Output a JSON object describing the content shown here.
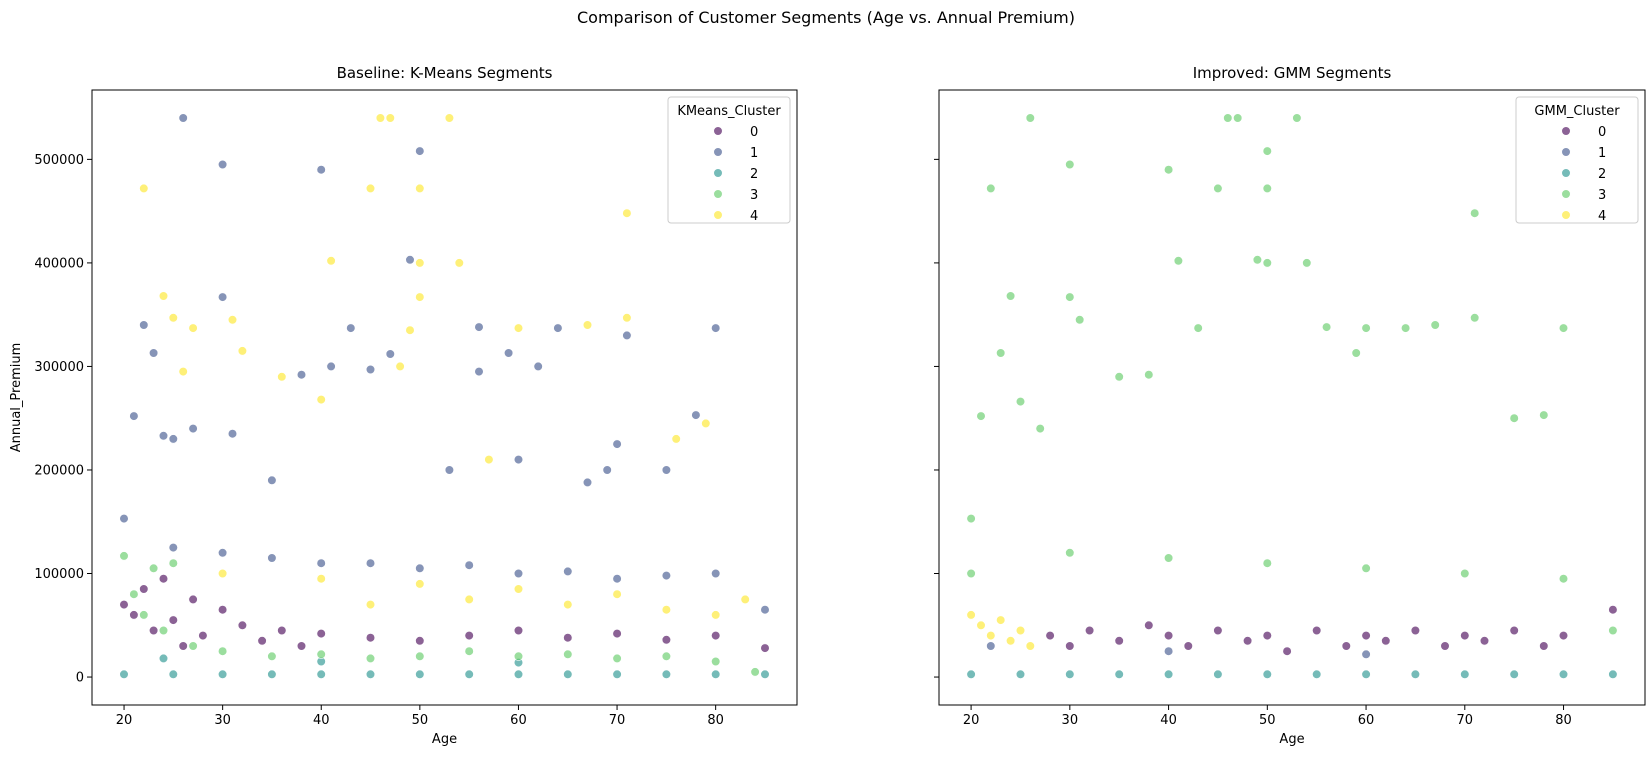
{
  "figure": {
    "suptitle": "Comparison of Customer Segments (Age vs. Annual Premium)"
  },
  "colors": {
    "cluster_0": "#440154",
    "cluster_1": "#3b528b",
    "cluster_2": "#21918c",
    "cluster_3": "#5ec962",
    "cluster_4": "#fde725"
  },
  "chart_data": [
    {
      "type": "scatter",
      "title": "Baseline: K-Means Segments",
      "xlabel": "Age",
      "ylabel": "Annual_Premium",
      "xlim": [
        16.75,
        88.25
      ],
      "ylim": [
        -27000,
        567000
      ],
      "xticks": [
        20,
        30,
        40,
        50,
        60,
        70,
        80
      ],
      "yticks": [
        0,
        100000,
        200000,
        300000,
        400000,
        500000
      ],
      "xtick_labels": [
        "20",
        "30",
        "40",
        "50",
        "60",
        "70",
        "80"
      ],
      "ytick_labels": [
        "0",
        "100000",
        "200000",
        "300000",
        "400000",
        "500000"
      ],
      "legend": {
        "title": "KMeans_Cluster",
        "placement": "top-right",
        "entries": [
          "0",
          "1",
          "2",
          "3",
          "4"
        ]
      },
      "grid": false,
      "series": [
        {
          "name": "0",
          "points": [
            [
              20,
              70000
            ],
            [
              21,
              60000
            ],
            [
              22,
              85000
            ],
            [
              23,
              45000
            ],
            [
              24,
              95000
            ],
            [
              25,
              55000
            ],
            [
              26,
              30000
            ],
            [
              27,
              75000
            ],
            [
              28,
              40000
            ],
            [
              30,
              65000
            ],
            [
              32,
              50000
            ],
            [
              34,
              35000
            ],
            [
              36,
              45000
            ],
            [
              38,
              30000
            ],
            [
              40,
              42000
            ],
            [
              45,
              38000
            ],
            [
              50,
              35000
            ],
            [
              55,
              40000
            ],
            [
              60,
              45000
            ],
            [
              65,
              38000
            ],
            [
              70,
              42000
            ],
            [
              75,
              36000
            ],
            [
              80,
              40000
            ],
            [
              85,
              28000
            ]
          ]
        },
        {
          "name": "1",
          "points": [
            [
              20,
              153000
            ],
            [
              21,
              252000
            ],
            [
              22,
              340000
            ],
            [
              23,
              313000
            ],
            [
              24,
              233000
            ],
            [
              25,
              230000
            ],
            [
              26,
              540000
            ],
            [
              27,
              240000
            ],
            [
              30,
              495000
            ],
            [
              30,
              367000
            ],
            [
              31,
              235000
            ],
            [
              35,
              190000
            ],
            [
              38,
              292000
            ],
            [
              40,
              490000
            ],
            [
              41,
              300000
            ],
            [
              43,
              337000
            ],
            [
              45,
              297000
            ],
            [
              47,
              312000
            ],
            [
              49,
              403000
            ],
            [
              50,
              508000
            ],
            [
              53,
              200000
            ],
            [
              56,
              338000
            ],
            [
              56,
              295000
            ],
            [
              59,
              313000
            ],
            [
              60,
              210000
            ],
            [
              62,
              300000
            ],
            [
              64,
              337000
            ],
            [
              67,
              188000
            ],
            [
              69,
              200000
            ],
            [
              70,
              225000
            ],
            [
              71,
              330000
            ],
            [
              75,
              200000
            ],
            [
              78,
              253000
            ],
            [
              80,
              337000
            ],
            [
              30,
              120000
            ],
            [
              40,
              110000
            ],
            [
              50,
              105000
            ],
            [
              60,
              100000
            ],
            [
              70,
              95000
            ],
            [
              80,
              100000
            ],
            [
              85,
              65000
            ],
            [
              25,
              125000
            ],
            [
              35,
              115000
            ],
            [
              45,
              110000
            ],
            [
              55,
              108000
            ],
            [
              65,
              102000
            ],
            [
              75,
              98000
            ]
          ]
        },
        {
          "name": "2",
          "points": [
            [
              20,
              2630
            ],
            [
              25,
              2630
            ],
            [
              30,
              2630
            ],
            [
              35,
              2630
            ],
            [
              40,
              2630
            ],
            [
              45,
              2630
            ],
            [
              50,
              2630
            ],
            [
              55,
              2630
            ],
            [
              60,
              2630
            ],
            [
              65,
              2630
            ],
            [
              70,
              2630
            ],
            [
              75,
              2630
            ],
            [
              80,
              2630
            ],
            [
              85,
              2630
            ],
            [
              24,
              18000
            ],
            [
              40,
              15000
            ],
            [
              60,
              14000
            ]
          ]
        },
        {
          "name": "3",
          "points": [
            [
              20,
              117000
            ],
            [
              21,
              80000
            ],
            [
              22,
              60000
            ],
            [
              23,
              105000
            ],
            [
              24,
              45000
            ],
            [
              25,
              110000
            ],
            [
              27,
              30000
            ],
            [
              30,
              25000
            ],
            [
              35,
              20000
            ],
            [
              40,
              22000
            ],
            [
              45,
              18000
            ],
            [
              50,
              20000
            ],
            [
              55,
              25000
            ],
            [
              60,
              20000
            ],
            [
              65,
              22000
            ],
            [
              70,
              18000
            ],
            [
              75,
              20000
            ],
            [
              80,
              15000
            ],
            [
              84,
              5000
            ]
          ]
        },
        {
          "name": "4",
          "points": [
            [
              22,
              472000
            ],
            [
              24,
              368000
            ],
            [
              25,
              347000
            ],
            [
              26,
              295000
            ],
            [
              27,
              337000
            ],
            [
              31,
              345000
            ],
            [
              32,
              315000
            ],
            [
              36,
              290000
            ],
            [
              40,
              268000
            ],
            [
              41,
              402000
            ],
            [
              45,
              472000
            ],
            [
              46,
              540000
            ],
            [
              47,
              540000
            ],
            [
              48,
              300000
            ],
            [
              49,
              335000
            ],
            [
              50,
              472000
            ],
            [
              50,
              400000
            ],
            [
              50,
              367000
            ],
            [
              53,
              540000
            ],
            [
              54,
              400000
            ],
            [
              57,
              210000
            ],
            [
              60,
              337000
            ],
            [
              67,
              340000
            ],
            [
              71,
              448000
            ],
            [
              71,
              347000
            ],
            [
              76,
              230000
            ],
            [
              79,
              245000
            ],
            [
              30,
              100000
            ],
            [
              40,
              95000
            ],
            [
              50,
              90000
            ],
            [
              60,
              85000
            ],
            [
              70,
              80000
            ],
            [
              80,
              60000
            ],
            [
              83,
              75000
            ],
            [
              45,
              70000
            ],
            [
              55,
              75000
            ],
            [
              65,
              70000
            ],
            [
              75,
              65000
            ]
          ]
        }
      ]
    },
    {
      "type": "scatter",
      "title": "Improved: GMM Segments",
      "xlabel": "Age",
      "ylabel": "",
      "xlim": [
        16.75,
        88.25
      ],
      "ylim": [
        -27000,
        567000
      ],
      "xticks": [
        20,
        30,
        40,
        50,
        60,
        70,
        80
      ],
      "yticks": [
        0,
        100000,
        200000,
        300000,
        400000,
        500000
      ],
      "xtick_labels": [
        "20",
        "30",
        "40",
        "50",
        "60",
        "70",
        "80"
      ],
      "ytick_labels": [],
      "legend": {
        "title": "GMM_Cluster",
        "placement": "top-right",
        "entries": [
          "0",
          "1",
          "2",
          "3",
          "4"
        ]
      },
      "grid": false,
      "series": [
        {
          "name": "0",
          "points": [
            [
              28,
              40000
            ],
            [
              30,
              30000
            ],
            [
              32,
              45000
            ],
            [
              35,
              35000
            ],
            [
              38,
              50000
            ],
            [
              40,
              40000
            ],
            [
              42,
              30000
            ],
            [
              45,
              45000
            ],
            [
              48,
              35000
            ],
            [
              50,
              40000
            ],
            [
              52,
              25000
            ],
            [
              55,
              45000
            ],
            [
              58,
              30000
            ],
            [
              60,
              40000
            ],
            [
              62,
              35000
            ],
            [
              65,
              45000
            ],
            [
              68,
              30000
            ],
            [
              70,
              40000
            ],
            [
              72,
              35000
            ],
            [
              75,
              45000
            ],
            [
              78,
              30000
            ],
            [
              80,
              40000
            ],
            [
              85,
              65000
            ]
          ]
        },
        {
          "name": "1",
          "points": [
            [
              22,
              30000
            ],
            [
              40,
              25000
            ],
            [
              60,
              22000
            ]
          ]
        },
        {
          "name": "2",
          "points": [
            [
              20,
              2630
            ],
            [
              25,
              2630
            ],
            [
              30,
              2630
            ],
            [
              35,
              2630
            ],
            [
              40,
              2630
            ],
            [
              45,
              2630
            ],
            [
              50,
              2630
            ],
            [
              55,
              2630
            ],
            [
              60,
              2630
            ],
            [
              65,
              2630
            ],
            [
              70,
              2630
            ],
            [
              75,
              2630
            ],
            [
              80,
              2630
            ],
            [
              85,
              2630
            ]
          ]
        },
        {
          "name": "3",
          "points": [
            [
              20,
              153000
            ],
            [
              21,
              252000
            ],
            [
              22,
              472000
            ],
            [
              23,
              313000
            ],
            [
              24,
              368000
            ],
            [
              25,
              266000
            ],
            [
              26,
              540000
            ],
            [
              27,
              240000
            ],
            [
              30,
              495000
            ],
            [
              30,
              367000
            ],
            [
              31,
              345000
            ],
            [
              35,
              290000
            ],
            [
              38,
              292000
            ],
            [
              40,
              490000
            ],
            [
              41,
              402000
            ],
            [
              43,
              337000
            ],
            [
              45,
              472000
            ],
            [
              46,
              540000
            ],
            [
              47,
              540000
            ],
            [
              49,
              403000
            ],
            [
              50,
              508000
            ],
            [
              50,
              472000
            ],
            [
              50,
              400000
            ],
            [
              53,
              540000
            ],
            [
              54,
              400000
            ],
            [
              56,
              338000
            ],
            [
              59,
              313000
            ],
            [
              60,
              337000
            ],
            [
              64,
              337000
            ],
            [
              67,
              340000
            ],
            [
              71,
              448000
            ],
            [
              71,
              347000
            ],
            [
              75,
              250000
            ],
            [
              78,
              253000
            ],
            [
              80,
              337000
            ],
            [
              20,
              100000
            ],
            [
              30,
              120000
            ],
            [
              40,
              115000
            ],
            [
              50,
              110000
            ],
            [
              60,
              105000
            ],
            [
              70,
              100000
            ],
            [
              80,
              95000
            ],
            [
              85,
              45000
            ]
          ]
        },
        {
          "name": "4",
          "points": [
            [
              20,
              60000
            ],
            [
              21,
              50000
            ],
            [
              22,
              40000
            ],
            [
              23,
              55000
            ],
            [
              24,
              35000
            ],
            [
              25,
              45000
            ],
            [
              26,
              30000
            ]
          ]
        }
      ]
    }
  ]
}
